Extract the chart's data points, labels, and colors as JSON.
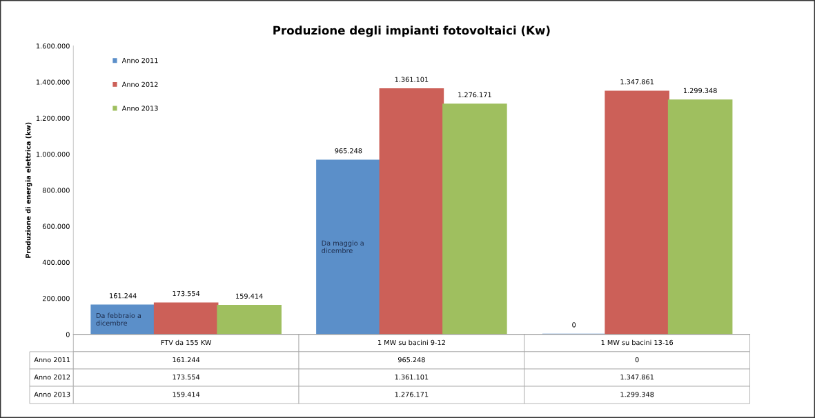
{
  "chart_data": {
    "type": "bar",
    "title": "Produzione degli impianti fotovoltaici (Kw)",
    "ylabel": "Produzione di energia elettrica (kw)",
    "categories": [
      "FTV da 155 KW",
      "1 MW su bacini 9-12",
      "1 MW su bacini 13-16"
    ],
    "series": [
      {
        "name": "Anno 2011",
        "color": "#5b8fc9",
        "values": [
          161244,
          965248,
          0
        ],
        "value_labels": [
          "161.244",
          "965.248",
          "0"
        ]
      },
      {
        "name": "Anno 2012",
        "color": "#cc6058",
        "values": [
          173554,
          1361101,
          1347861
        ],
        "value_labels": [
          "173.554",
          "1.361.101",
          "1.347.861"
        ]
      },
      {
        "name": "Anno 2013",
        "color": "#9fbf5f",
        "values": [
          159414,
          1276171,
          1299348
        ],
        "value_labels": [
          "159.414",
          "1.276.171",
          "1.299.348"
        ]
      }
    ],
    "ylim": [
      0,
      1600000
    ],
    "yticks": [
      {
        "value": 0,
        "label": "0"
      },
      {
        "value": 200000,
        "label": "200.000"
      },
      {
        "value": 400000,
        "label": "400.000"
      },
      {
        "value": 600000,
        "label": "600.000"
      },
      {
        "value": 800000,
        "label": "800.000"
      },
      {
        "value": 1000000,
        "label": "1.000.000"
      },
      {
        "value": 1200000,
        "label": "1.200.000"
      },
      {
        "value": 1400000,
        "label": "1.400.000"
      },
      {
        "value": 1600000,
        "label": "1.600.000"
      }
    ],
    "annotations": [
      "Da febbraio a\ndicembre",
      "Da maggio a\ndicembre"
    ],
    "grid": false,
    "legend": "top left"
  }
}
